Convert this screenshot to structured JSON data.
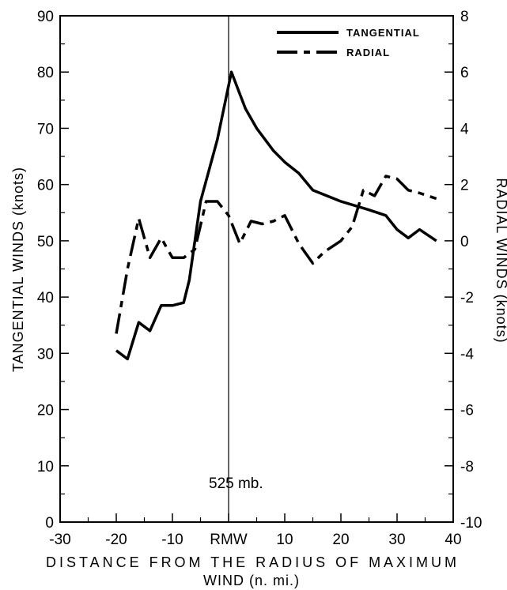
{
  "chart_data": {
    "type": "line",
    "x_axis": {
      "label_line1": "DISTANCE FROM THE RADIUS OF MAXIMUM",
      "label_line2": "WIND (n. mi.)",
      "range": [
        -30,
        40
      ],
      "tick_labels": [
        "-30",
        "-20",
        "-10",
        "RMW",
        "10",
        "20",
        "30",
        "40"
      ]
    },
    "y_axis_left": {
      "label": "TANGENTIAL WINDS (knots)",
      "range": [
        0,
        90
      ],
      "tick_labels": [
        "0",
        "10",
        "20",
        "30",
        "40",
        "50",
        "60",
        "70",
        "80",
        "90"
      ]
    },
    "y_axis_right": {
      "label": "RADIAL WINDS (knots)",
      "range": [
        -10,
        8
      ],
      "tick_labels": [
        "-10",
        "-8",
        "-6",
        "-4",
        "-2",
        "0",
        "2",
        "4",
        "6",
        "8"
      ]
    },
    "annotation": "525 mb.",
    "rmw_line_x": 0,
    "legend": {
      "position": "top-right"
    },
    "series": [
      {
        "name": "TANGENTIAL",
        "axis": "left",
        "style": "solid",
        "x": [
          -20,
          -18,
          -16,
          -14,
          -12,
          -10,
          -8,
          -7,
          -5,
          -2,
          0.5,
          3,
          5,
          8,
          10,
          12.5,
          15,
          20,
          25,
          28,
          30,
          32,
          34,
          37
        ],
        "y": [
          30.5,
          29,
          35.5,
          34,
          38.5,
          38.5,
          39,
          43,
          57,
          68,
          80,
          73.5,
          70,
          66,
          64,
          62,
          59,
          57,
          55.5,
          54.5,
          52,
          50.5,
          52,
          50
        ]
      },
      {
        "name": "RADIAL",
        "axis": "right",
        "style": "dashed",
        "x": [
          -20,
          -18,
          -16,
          -14,
          -12,
          -10,
          -8,
          -6,
          -4,
          -2,
          0,
          2,
          4,
          6,
          8,
          10,
          12.5,
          15,
          17,
          20,
          22,
          24,
          26,
          28,
          30,
          32,
          34,
          37
        ],
        "y": [
          -3.3,
          -1,
          0.8,
          -0.6,
          0.1,
          -0.6,
          -0.6,
          -0.3,
          1.4,
          1.4,
          0.9,
          -0.1,
          0.7,
          0.6,
          0.7,
          0.9,
          -0.1,
          -0.8,
          -0.4,
          0,
          0.5,
          1.8,
          1.6,
          2.3,
          2.2,
          1.8,
          1.7,
          1.5
        ]
      }
    ]
  }
}
